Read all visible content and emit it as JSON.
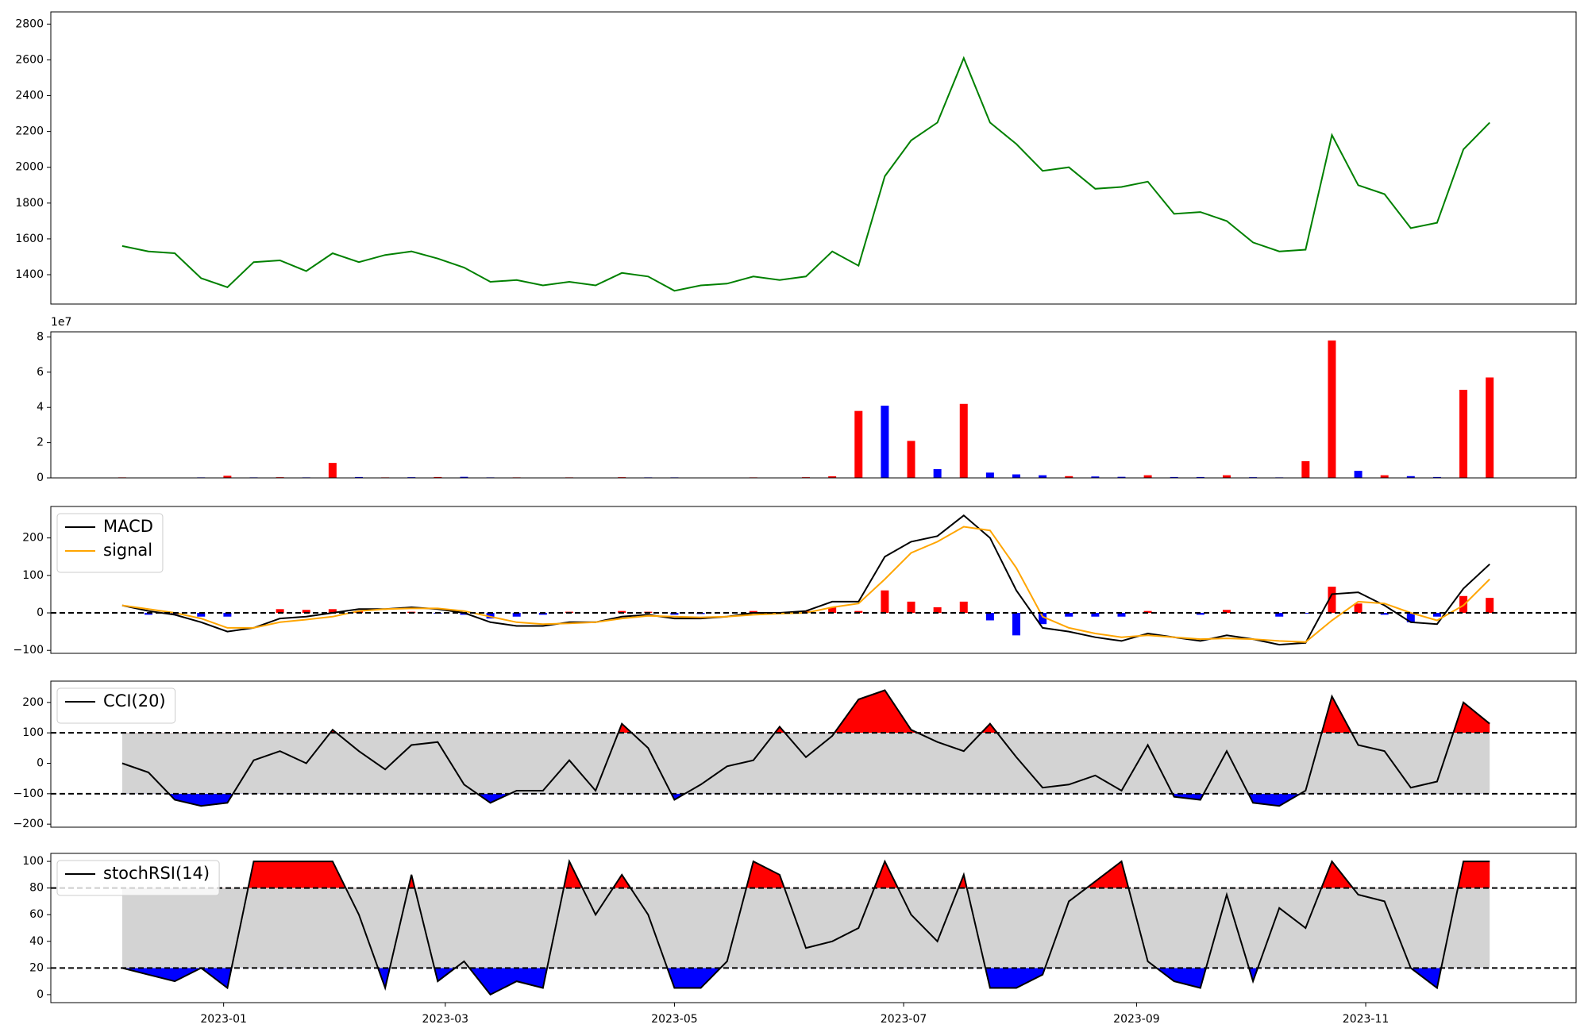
{
  "chart_data": [
    {
      "type": "line",
      "x": [
        "2022-12-05",
        "2022-12-12",
        "2022-12-19",
        "2022-12-26",
        "2023-01-02",
        "2023-01-09",
        "2023-01-16",
        "2023-01-23",
        "2023-01-30",
        "2023-02-06",
        "2023-02-13",
        "2023-02-20",
        "2023-02-27",
        "2023-03-06",
        "2023-03-13",
        "2023-03-20",
        "2023-03-27",
        "2023-04-03",
        "2023-04-10",
        "2023-04-17",
        "2023-04-24",
        "2023-05-01",
        "2023-05-08",
        "2023-05-15",
        "2023-05-22",
        "2023-05-29",
        "2023-06-05",
        "2023-06-12",
        "2023-06-19",
        "2023-06-26",
        "2023-07-03",
        "2023-07-10",
        "2023-07-17",
        "2023-07-24",
        "2023-07-31",
        "2023-08-07",
        "2023-08-14",
        "2023-08-21",
        "2023-08-28",
        "2023-09-04",
        "2023-09-11",
        "2023-09-18",
        "2023-09-25",
        "2023-10-02",
        "2023-10-09",
        "2023-10-16",
        "2023-10-23",
        "2023-10-30",
        "2023-11-06",
        "2023-11-13",
        "2023-11-20",
        "2023-11-27",
        "2023-12-04"
      ],
      "series": [
        {
          "color": "green",
          "values": [
            1560,
            1530,
            1520,
            1380,
            1330,
            1470,
            1480,
            1420,
            1520,
            1470,
            1510,
            1530,
            1490,
            1440,
            1360,
            1370,
            1340,
            1360,
            1340,
            1410,
            1390,
            1310,
            1340,
            1350,
            1390,
            1370,
            1390,
            1530,
            1450,
            1950,
            2150,
            2250,
            2610,
            2250,
            2130,
            1980,
            2000,
            1880,
            1890,
            1920,
            1740,
            1750,
            1700,
            1580,
            1530,
            1540,
            2180,
            1900,
            1850,
            1660,
            1690,
            2100,
            2250
          ]
        }
      ],
      "xlim": [
        "2022-11-16",
        "2023-12-27"
      ],
      "ylim": [
        1236,
        2868
      ],
      "yticks": [
        1400,
        1600,
        1800,
        2000,
        2200,
        2400,
        2600,
        2800
      ]
    },
    {
      "type": "bar",
      "x": [
        "2022-12-05",
        "2022-12-12",
        "2022-12-19",
        "2022-12-26",
        "2023-01-02",
        "2023-01-09",
        "2023-01-16",
        "2023-01-23",
        "2023-01-30",
        "2023-02-06",
        "2023-02-13",
        "2023-02-20",
        "2023-02-27",
        "2023-03-06",
        "2023-03-13",
        "2023-03-20",
        "2023-03-27",
        "2023-04-03",
        "2023-04-10",
        "2023-04-17",
        "2023-04-24",
        "2023-05-01",
        "2023-05-08",
        "2023-05-15",
        "2023-05-22",
        "2023-05-29",
        "2023-06-05",
        "2023-06-12",
        "2023-06-19",
        "2023-06-26",
        "2023-07-03",
        "2023-07-10",
        "2023-07-17",
        "2023-07-24",
        "2023-07-31",
        "2023-08-07",
        "2023-08-14",
        "2023-08-21",
        "2023-08-28",
        "2023-09-04",
        "2023-09-11",
        "2023-09-18",
        "2023-09-25",
        "2023-10-02",
        "2023-10-09",
        "2023-10-16",
        "2023-10-23",
        "2023-10-30",
        "2023-11-06",
        "2023-11-13",
        "2023-11-20",
        "2023-11-27",
        "2023-12-04"
      ],
      "values": [
        300000,
        200000,
        200000,
        300000,
        1200000,
        300000,
        400000,
        300000,
        8500000,
        500000,
        300000,
        400000,
        500000,
        600000,
        300000,
        300000,
        200000,
        300000,
        200000,
        400000,
        300000,
        300000,
        200000,
        200000,
        300000,
        200000,
        400000,
        900000,
        38000000,
        41000000,
        21000000,
        5000000,
        42000000,
        3000000,
        2000000,
        1500000,
        1000000,
        800000,
        600000,
        1500000,
        500000,
        500000,
        1500000,
        400000,
        300000,
        9500000,
        78000000,
        4000000,
        1500000,
        1000000,
        500000,
        50000000,
        57000000
      ],
      "colors": [
        "red",
        "blue",
        "red",
        "blue",
        "red",
        "blue",
        "red",
        "blue",
        "red",
        "blue",
        "red",
        "blue",
        "red",
        "blue",
        "blue",
        "red",
        "blue",
        "red",
        "blue",
        "red",
        "blue",
        "blue",
        "red",
        "blue",
        "red",
        "blue",
        "red",
        "red",
        "red",
        "blue",
        "red",
        "blue",
        "red",
        "blue",
        "blue",
        "blue",
        "red",
        "blue",
        "blue",
        "red",
        "blue",
        "blue",
        "red",
        "blue",
        "blue",
        "red",
        "red",
        "blue",
        "red",
        "blue",
        "blue",
        "red",
        "red"
      ],
      "offset_label": "1e7",
      "xlim": [
        "2022-11-16",
        "2023-12-27"
      ],
      "ylim": [
        0,
        82900000
      ],
      "yticks": [
        0,
        {
          "value": 20000000,
          "label": "2"
        },
        {
          "value": 40000000,
          "label": "4"
        },
        {
          "value": 60000000,
          "label": "6"
        },
        {
          "value": 80000000,
          "label": "8"
        }
      ]
    },
    {
      "type": "macd",
      "x": [
        "2022-12-05",
        "2022-12-12",
        "2022-12-19",
        "2022-12-26",
        "2023-01-02",
        "2023-01-09",
        "2023-01-16",
        "2023-01-23",
        "2023-01-30",
        "2023-02-06",
        "2023-02-13",
        "2023-02-20",
        "2023-02-27",
        "2023-03-06",
        "2023-03-13",
        "2023-03-20",
        "2023-03-27",
        "2023-04-03",
        "2023-04-10",
        "2023-04-17",
        "2023-04-24",
        "2023-05-01",
        "2023-05-08",
        "2023-05-15",
        "2023-05-22",
        "2023-05-29",
        "2023-06-05",
        "2023-06-12",
        "2023-06-19",
        "2023-06-26",
        "2023-07-03",
        "2023-07-10",
        "2023-07-17",
        "2023-07-24",
        "2023-07-31",
        "2023-08-07",
        "2023-08-14",
        "2023-08-21",
        "2023-08-28",
        "2023-09-04",
        "2023-09-11",
        "2023-09-18",
        "2023-09-25",
        "2023-10-02",
        "2023-10-09",
        "2023-10-16",
        "2023-10-23",
        "2023-10-30",
        "2023-11-06",
        "2023-11-13",
        "2023-11-20",
        "2023-11-27",
        "2023-12-04"
      ],
      "series": [
        {
          "name": "MACD",
          "color": "black",
          "values": [
            20,
            5,
            -5,
            -25,
            -50,
            -40,
            -15,
            -10,
            0,
            10,
            10,
            15,
            10,
            0,
            -25,
            -35,
            -35,
            -25,
            -25,
            -10,
            -5,
            -15,
            -15,
            -10,
            0,
            0,
            5,
            30,
            30,
            150,
            190,
            205,
            260,
            200,
            60,
            -40,
            -50,
            -65,
            -75,
            -55,
            -65,
            -75,
            -60,
            -70,
            -85,
            -80,
            50,
            55,
            20,
            -25,
            -30,
            65,
            130
          ]
        },
        {
          "name": "signal",
          "color": "orange",
          "values": [
            20,
            10,
            0,
            -15,
            -40,
            -40,
            -25,
            -18,
            -10,
            5,
            10,
            12,
            12,
            5,
            -10,
            -25,
            -30,
            -28,
            -25,
            -15,
            -8,
            -10,
            -12,
            -10,
            -5,
            -2,
            0,
            15,
            25,
            90,
            160,
            190,
            230,
            220,
            120,
            -10,
            -40,
            -55,
            -65,
            -60,
            -65,
            -70,
            -68,
            -70,
            -75,
            -78,
            -20,
            30,
            25,
            0,
            -20,
            20,
            90
          ]
        }
      ],
      "histogram": {
        "values": [
          0,
          -5,
          -5,
          -10,
          -10,
          0,
          10,
          8,
          10,
          5,
          0,
          3,
          -2,
          -5,
          -15,
          -10,
          -5,
          3,
          0,
          5,
          3,
          -5,
          -3,
          0,
          5,
          2,
          5,
          15,
          5,
          60,
          30,
          15,
          30,
          -20,
          -60,
          -30,
          -10,
          -10,
          -10,
          5,
          0,
          -5,
          8,
          0,
          -10,
          -2,
          70,
          25,
          -5,
          -25,
          -10,
          45,
          40
        ],
        "positive_color": "red",
        "negative_color": "blue"
      },
      "reference_line": 0,
      "xlim": [
        "2022-11-16",
        "2023-12-27"
      ],
      "ylim": [
        -108,
        284
      ],
      "yticks": [
        {
          "value": -100,
          "label": "−100"
        },
        0,
        100,
        200
      ]
    },
    {
      "type": "oscillator",
      "x": [
        "2022-12-05",
        "2022-12-12",
        "2022-12-19",
        "2022-12-26",
        "2023-01-02",
        "2023-01-09",
        "2023-01-16",
        "2023-01-23",
        "2023-01-30",
        "2023-02-06",
        "2023-02-13",
        "2023-02-20",
        "2023-02-27",
        "2023-03-06",
        "2023-03-13",
        "2023-03-20",
        "2023-03-27",
        "2023-04-03",
        "2023-04-10",
        "2023-04-17",
        "2023-04-24",
        "2023-05-01",
        "2023-05-08",
        "2023-05-15",
        "2023-05-22",
        "2023-05-29",
        "2023-06-05",
        "2023-06-12",
        "2023-06-19",
        "2023-06-26",
        "2023-07-03",
        "2023-07-10",
        "2023-07-17",
        "2023-07-24",
        "2023-07-31",
        "2023-08-07",
        "2023-08-14",
        "2023-08-21",
        "2023-08-28",
        "2023-09-04",
        "2023-09-11",
        "2023-09-18",
        "2023-09-25",
        "2023-10-02",
        "2023-10-09",
        "2023-10-16",
        "2023-10-23",
        "2023-10-30",
        "2023-11-06",
        "2023-11-13",
        "2023-11-20",
        "2023-11-27",
        "2023-12-04"
      ],
      "series": [
        {
          "name": "CCI(20)",
          "color": "black",
          "values": [
            0,
            -30,
            -120,
            -140,
            -130,
            10,
            40,
            0,
            110,
            40,
            -20,
            60,
            70,
            -70,
            -130,
            -90,
            -90,
            10,
            -90,
            130,
            50,
            -120,
            -70,
            -10,
            10,
            120,
            20,
            90,
            210,
            240,
            110,
            70,
            40,
            130,
            20,
            -80,
            -70,
            -40,
            -90,
            60,
            -110,
            -120,
            40,
            -130,
            -140,
            -90,
            220,
            60,
            40,
            -80,
            -60,
            200,
            130
          ]
        }
      ],
      "bands": [
        -100,
        100
      ],
      "band_colors": {
        "upper": "red",
        "lower": "blue",
        "middle": "lightgray"
      },
      "xlim": [
        "2022-11-16",
        "2023-12-27"
      ],
      "ylim": [
        -210,
        270
      ],
      "yticks": [
        {
          "value": -200,
          "label": "−200"
        },
        {
          "value": -100,
          "label": "−100"
        },
        0,
        100,
        200
      ]
    },
    {
      "type": "oscillator",
      "x": [
        "2022-12-05",
        "2022-12-12",
        "2022-12-19",
        "2022-12-26",
        "2023-01-02",
        "2023-01-09",
        "2023-01-16",
        "2023-01-23",
        "2023-01-30",
        "2023-02-06",
        "2023-02-13",
        "2023-02-20",
        "2023-02-27",
        "2023-03-06",
        "2023-03-13",
        "2023-03-20",
        "2023-03-27",
        "2023-04-03",
        "2023-04-10",
        "2023-04-17",
        "2023-04-24",
        "2023-05-01",
        "2023-05-08",
        "2023-05-15",
        "2023-05-22",
        "2023-05-29",
        "2023-06-05",
        "2023-06-12",
        "2023-06-19",
        "2023-06-26",
        "2023-07-03",
        "2023-07-10",
        "2023-07-17",
        "2023-07-24",
        "2023-07-31",
        "2023-08-07",
        "2023-08-14",
        "2023-08-21",
        "2023-08-28",
        "2023-09-04",
        "2023-09-11",
        "2023-09-18",
        "2023-09-25",
        "2023-10-02",
        "2023-10-09",
        "2023-10-16",
        "2023-10-23",
        "2023-10-30",
        "2023-11-06",
        "2023-11-13",
        "2023-11-20",
        "2023-11-27",
        "2023-12-04"
      ],
      "series": [
        {
          "name": "stochRSI(14)",
          "color": "black",
          "values": [
            20,
            15,
            10,
            20,
            5,
            100,
            100,
            100,
            100,
            60,
            5,
            90,
            10,
            25,
            0,
            10,
            5,
            100,
            60,
            90,
            60,
            5,
            5,
            25,
            100,
            90,
            35,
            40,
            50,
            100,
            60,
            40,
            90,
            5,
            5,
            15,
            70,
            85,
            100,
            25,
            10,
            5,
            75,
            10,
            65,
            50,
            100,
            75,
            70,
            20,
            5,
            100,
            100
          ]
        }
      ],
      "bands": [
        20,
        80
      ],
      "band_colors": {
        "upper": "red",
        "lower": "blue",
        "middle": "lightgray"
      },
      "xlim": [
        "2022-11-16",
        "2023-12-27"
      ],
      "ylim": [
        -6,
        106
      ],
      "yticks": [
        0,
        20,
        40,
        60,
        80,
        100
      ],
      "xticks": [
        {
          "value": "2023-01-01",
          "label": "2023-01"
        },
        {
          "value": "2023-03-01",
          "label": "2023-03"
        },
        {
          "value": "2023-05-01",
          "label": "2023-05"
        },
        {
          "value": "2023-07-01",
          "label": "2023-07"
        },
        {
          "value": "2023-09-01",
          "label": "2023-09"
        },
        {
          "value": "2023-11-01",
          "label": "2023-11"
        }
      ]
    }
  ]
}
